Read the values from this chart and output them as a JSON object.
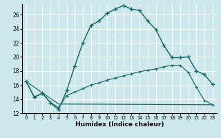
{
  "xlabel": "Humidex (Indice chaleur)",
  "background_color": "#cde8ec",
  "grid_color": "#b0d4d8",
  "line_color": "#1a6b6b",
  "xlim": [
    -0.5,
    23.5
  ],
  "ylim": [
    12,
    27.5
  ],
  "yticks": [
    12,
    14,
    16,
    18,
    20,
    22,
    24,
    26
  ],
  "xticks": [
    0,
    1,
    2,
    3,
    4,
    5,
    6,
    7,
    8,
    9,
    10,
    11,
    12,
    13,
    14,
    15,
    16,
    17,
    18,
    19,
    20,
    21,
    22,
    23
  ],
  "line1_x": [
    0,
    1,
    2,
    3,
    4,
    5,
    6,
    7,
    8,
    9,
    10,
    11,
    12,
    13,
    14,
    15,
    16,
    17,
    18,
    19,
    20,
    21,
    22,
    23
  ],
  "line1_y": [
    16.5,
    14.3,
    14.8,
    13.5,
    12.5,
    15.2,
    18.7,
    22.0,
    24.5,
    25.1,
    26.2,
    26.8,
    27.3,
    26.8,
    26.6,
    25.1,
    23.9,
    21.6,
    19.9,
    19.9,
    20.0,
    18.0,
    17.5,
    16.1
  ],
  "line2_x": [
    0,
    1,
    2,
    3,
    4,
    5,
    6,
    7,
    8,
    9,
    10,
    11,
    12,
    13,
    14,
    15,
    16,
    17,
    18,
    19,
    20,
    21,
    22,
    23
  ],
  "line2_y": [
    16.5,
    14.3,
    14.8,
    13.5,
    12.8,
    14.5,
    15.0,
    15.5,
    16.0,
    16.3,
    16.7,
    17.0,
    17.3,
    17.6,
    17.9,
    18.1,
    18.3,
    18.6,
    18.8,
    18.8,
    17.8,
    15.7,
    13.8,
    13.2
  ],
  "line3_x": [
    0,
    4,
    23
  ],
  "line3_y": [
    16.5,
    13.3,
    13.2
  ]
}
